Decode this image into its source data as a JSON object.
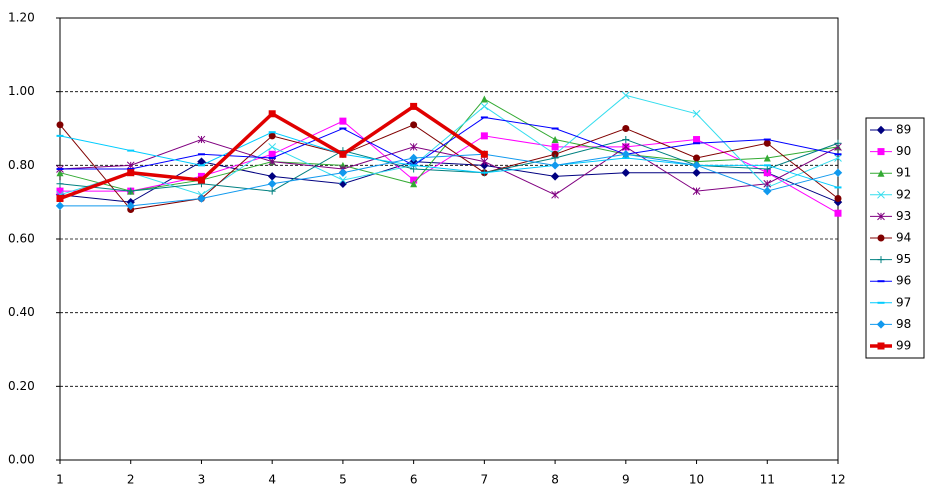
{
  "chart_data": {
    "type": "line",
    "x": [
      1,
      2,
      3,
      4,
      5,
      6,
      7,
      8,
      9,
      10,
      11,
      12
    ],
    "xlim": [
      1,
      12
    ],
    "xticks": [
      1,
      2,
      3,
      4,
      5,
      6,
      7,
      8,
      9,
      10,
      11,
      12
    ],
    "ylim": [
      0,
      1.2
    ],
    "yticks": [
      {
        "value": 0,
        "label": "0.00"
      },
      {
        "value": 0.2,
        "label": "0.20"
      },
      {
        "value": 0.4,
        "label": "0.40"
      },
      {
        "value": 0.6,
        "label": "0.60"
      },
      {
        "value": 0.8,
        "label": "0.80"
      },
      {
        "value": 1.0,
        "label": "1.00"
      },
      {
        "value": 1.2,
        "label": "1.20"
      }
    ],
    "grid": true,
    "legend": "right",
    "series": [
      {
        "name": "89",
        "color": "#000080",
        "marker": "diamond",
        "values": [
          0.72,
          0.7,
          0.81,
          0.77,
          0.75,
          0.81,
          0.8,
          0.77,
          0.78,
          0.78,
          0.78,
          0.7
        ]
      },
      {
        "name": "90",
        "color": "#ff00ff",
        "marker": "square",
        "values": [
          0.73,
          0.73,
          0.77,
          0.83,
          0.92,
          0.76,
          0.88,
          0.85,
          0.85,
          0.87,
          0.78,
          0.67
        ]
      },
      {
        "name": "91",
        "color": "#33aa33",
        "marker": "triangle",
        "values": [
          0.78,
          0.73,
          0.76,
          0.81,
          0.8,
          0.75,
          0.98,
          0.87,
          0.83,
          0.81,
          0.82,
          0.85
        ]
      },
      {
        "name": "92",
        "color": "#33ddee",
        "marker": "x",
        "values": [
          0.72,
          0.78,
          0.72,
          0.85,
          0.76,
          0.8,
          0.96,
          0.83,
          0.99,
          0.94,
          0.74,
          0.82
        ]
      },
      {
        "name": "93",
        "color": "#800080",
        "marker": "star",
        "values": [
          0.79,
          0.8,
          0.87,
          0.81,
          0.79,
          0.85,
          0.81,
          0.72,
          0.85,
          0.73,
          0.75,
          0.85
        ]
      },
      {
        "name": "94",
        "color": "#800000",
        "marker": "circle",
        "values": [
          0.91,
          0.68,
          0.71,
          0.88,
          0.83,
          0.91,
          0.78,
          0.83,
          0.9,
          0.82,
          0.86,
          0.71
        ]
      },
      {
        "name": "95",
        "color": "#008080",
        "marker": "plus",
        "values": [
          0.75,
          0.73,
          0.75,
          0.73,
          0.84,
          0.79,
          0.78,
          0.82,
          0.87,
          0.8,
          0.79,
          0.86
        ]
      },
      {
        "name": "96",
        "color": "#0000ff",
        "marker": "dash",
        "values": [
          0.79,
          0.79,
          0.83,
          0.82,
          0.9,
          0.8,
          0.93,
          0.9,
          0.83,
          0.86,
          0.87,
          0.83
        ]
      },
      {
        "name": "97",
        "color": "#00ccff",
        "marker": "dash",
        "values": [
          0.88,
          0.84,
          0.8,
          0.89,
          0.83,
          0.8,
          0.78,
          0.8,
          0.82,
          0.8,
          0.8,
          0.74
        ]
      },
      {
        "name": "98",
        "color": "#1199ee",
        "marker": "diamond",
        "values": [
          0.69,
          0.69,
          0.71,
          0.75,
          0.78,
          0.82,
          0.83,
          0.8,
          0.83,
          0.8,
          0.73,
          0.78
        ]
      },
      {
        "name": "99",
        "color": "#e00000",
        "marker": "square",
        "width": 3.5,
        "values": [
          0.71,
          0.78,
          0.76,
          0.94,
          0.83,
          0.96,
          0.83,
          null,
          null,
          null,
          null,
          null
        ]
      }
    ]
  }
}
